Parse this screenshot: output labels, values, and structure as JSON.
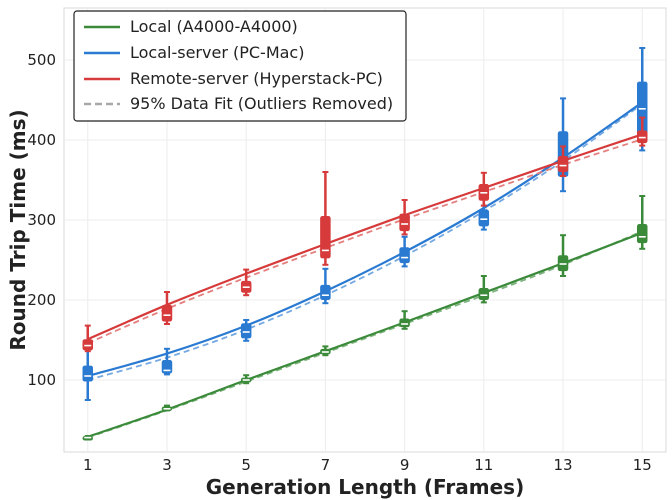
{
  "chart_data": {
    "type": "line",
    "xlabel": "Generation Length (Frames)",
    "ylabel": "Round Trip Time (ms)",
    "xlim": [
      0.4,
      15.6
    ],
    "ylim": [
      10,
      565
    ],
    "xticks": [
      1,
      3,
      5,
      7,
      9,
      11,
      13,
      15
    ],
    "yticks": [
      100,
      200,
      300,
      400,
      500
    ],
    "grid": true,
    "legend_position": "top-left",
    "series": [
      {
        "name": "Local (A4000-A4000)",
        "color": "#3a8a3a",
        "fit": [
          29,
          63,
          100,
          136,
          172,
          209,
          246,
          284
        ],
        "fit_dashed": [
          28,
          62,
          98,
          134,
          170,
          206,
          244,
          286
        ],
        "boxes": [
          {
            "x": 1,
            "min": 27,
            "q1": 27,
            "median": 28,
            "q3": 29,
            "max": 30
          },
          {
            "x": 3,
            "min": 62,
            "q1": 63,
            "median": 64,
            "q3": 66,
            "max": 68
          },
          {
            "x": 5,
            "min": 96,
            "q1": 98,
            "median": 100,
            "q3": 102,
            "max": 106
          },
          {
            "x": 7,
            "min": 131,
            "q1": 133,
            "median": 135,
            "q3": 138,
            "max": 142
          },
          {
            "x": 9,
            "min": 164,
            "q1": 167,
            "median": 170,
            "q3": 176,
            "max": 186
          },
          {
            "x": 11,
            "min": 197,
            "q1": 201,
            "median": 206,
            "q3": 214,
            "max": 230
          },
          {
            "x": 13,
            "min": 230,
            "q1": 237,
            "median": 245,
            "q3": 255,
            "max": 281
          },
          {
            "x": 15,
            "min": 264,
            "q1": 272,
            "median": 279,
            "q3": 294,
            "max": 330
          }
        ]
      },
      {
        "name": "Local-server (PC-Mac)",
        "color": "#2a7ad2",
        "fit": [
          105,
          133,
          168,
          211,
          260,
          315,
          378,
          447
        ],
        "fit_dashed": [
          100,
          128,
          163,
          206,
          255,
          311,
          374,
          445
        ],
        "boxes": [
          {
            "x": 1,
            "min": 75,
            "q1": 99,
            "median": 105,
            "q3": 117,
            "max": 140
          },
          {
            "x": 3,
            "min": 107,
            "q1": 109,
            "median": 112,
            "q3": 124,
            "max": 139
          },
          {
            "x": 5,
            "min": 149,
            "q1": 153,
            "median": 160,
            "q3": 170,
            "max": 175
          },
          {
            "x": 7,
            "min": 196,
            "q1": 201,
            "median": 206,
            "q3": 218,
            "max": 239
          },
          {
            "x": 9,
            "min": 242,
            "q1": 247,
            "median": 253,
            "q3": 265,
            "max": 279
          },
          {
            "x": 11,
            "min": 288,
            "q1": 293,
            "median": 301,
            "q3": 312,
            "max": 341
          },
          {
            "x": 13,
            "min": 336,
            "q1": 355,
            "median": 379,
            "q3": 410,
            "max": 452
          },
          {
            "x": 15,
            "min": 387,
            "q1": 406,
            "median": 439,
            "q3": 472,
            "max": 515
          }
        ]
      },
      {
        "name": "Remote-server (Hyperstack-PC)",
        "color": "#d63a3a",
        "fit": [
          151,
          194,
          233,
          270,
          306,
          340,
          374,
          407
        ],
        "fit_dashed": [
          146,
          189,
          228,
          265,
          301,
          335,
          369,
          401
        ],
        "boxes": [
          {
            "x": 1,
            "min": 136,
            "q1": 138,
            "median": 143,
            "q3": 150,
            "max": 168
          },
          {
            "x": 3,
            "min": 170,
            "q1": 174,
            "median": 181,
            "q3": 193,
            "max": 210
          },
          {
            "x": 5,
            "min": 206,
            "q1": 210,
            "median": 216,
            "q3": 223,
            "max": 238
          },
          {
            "x": 7,
            "min": 244,
            "q1": 253,
            "median": 262,
            "q3": 304,
            "max": 360
          },
          {
            "x": 9,
            "min": 282,
            "q1": 287,
            "median": 295,
            "q3": 307,
            "max": 325
          },
          {
            "x": 11,
            "min": 318,
            "q1": 325,
            "median": 334,
            "q3": 344,
            "max": 359
          },
          {
            "x": 13,
            "min": 355,
            "q1": 361,
            "median": 368,
            "q3": 379,
            "max": 392
          },
          {
            "x": 15,
            "min": 393,
            "q1": 397,
            "median": 403,
            "q3": 411,
            "max": 428
          }
        ]
      }
    ],
    "fit_legend": {
      "name": "95% Data Fit (Outliers Removed)",
      "color": "#a8a8a8"
    }
  }
}
